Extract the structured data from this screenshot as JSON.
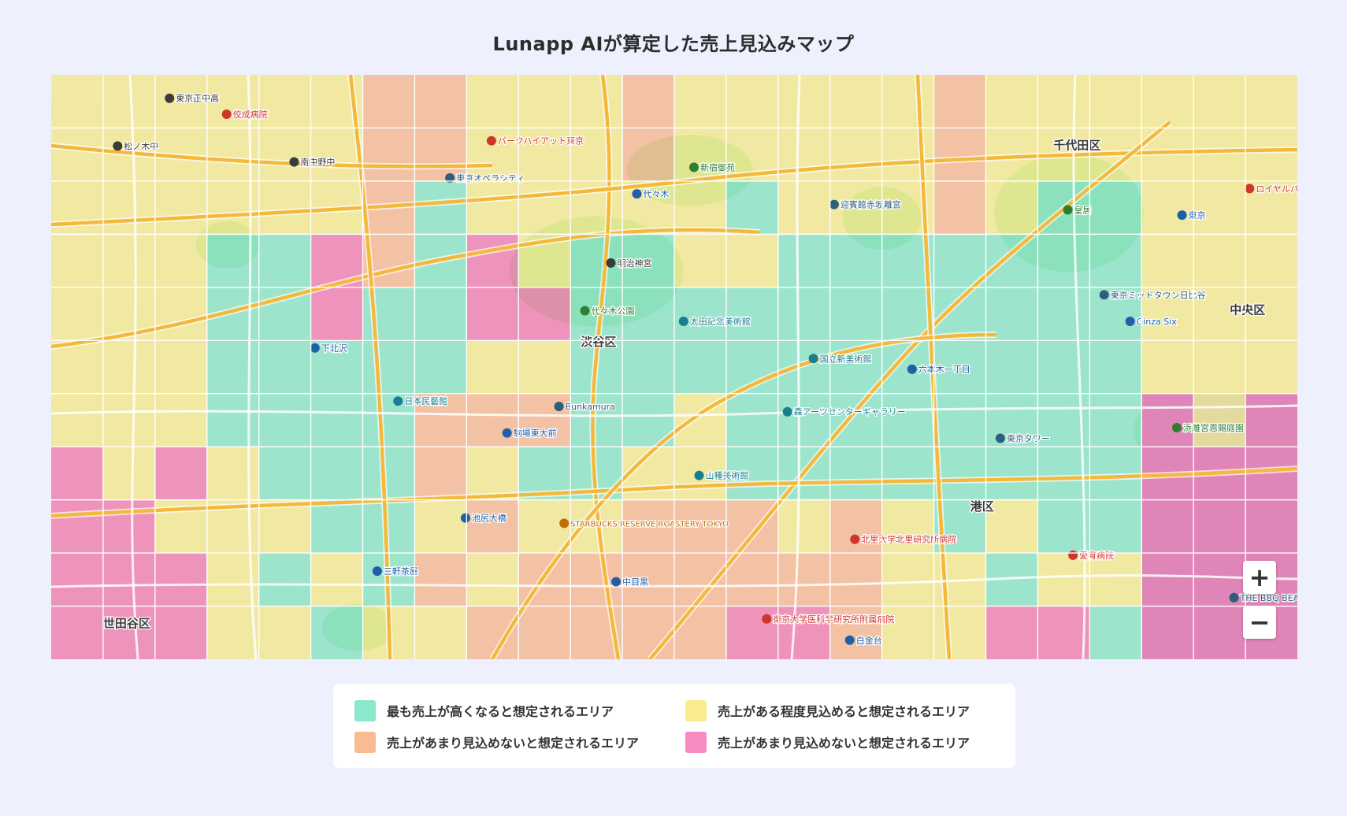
{
  "title": "Lunapp AIが算定した売上見込みマップ",
  "zoom": {
    "in_label": "+",
    "out_label": "−"
  },
  "colors": {
    "high": "#6be0c0",
    "medium": "#f3e87a",
    "low": "#f7a87c",
    "lowest": "#ee5ea3",
    "grid": "#ffffff",
    "road_major": "#f4b93c",
    "road_minor": "#ffffff",
    "park": "#bfe3b5"
  },
  "legend": [
    {
      "label": "最も売上が高くなると想定されるエリア",
      "color": "#8ae8cd"
    },
    {
      "label": "売上がある程度見込めると想定されるエリア",
      "color": "#fbeb8f"
    },
    {
      "label": "売上があまり見込めないと想定されるエリア",
      "color": "#fbbb92"
    },
    {
      "label": "売上があまり見込めないと想定されるエリア",
      "color": "#f68bbf"
    }
  ],
  "heat_grid": {
    "cols": 24,
    "rows": 11,
    "legend": "Y=ある程度見込める, G=最も高い, O=あまり見込めない, P=あまり見込めない",
    "cells": [
      "YYYYYYOOYYYOYYYYYOYYYYYY",
      "YYYYYYOOYYYOYYYYYOYYYYYY",
      "YYYYYYOGYYYYYGYYYOYGGYYY",
      "YYYGGPOGPYGGYYGGGGGGGYYY",
      "YYYGGPGGPPGGGGGGGGGGGYYY",
      "YYYGGGGGYYGGGGGGGGGGGYYY",
      "YYYGGGGOOOGGYGGGGGGGGPYP",
      "PYPYGGGOYGGYYGGGGGGGGPPP",
      "PPYYYGGYOYYOOOYOYGYGGPPP",
      "PPPYGYGOYOOOOOOOYYGYYPPP",
      "PPPYYGYYOOOOOPPOYYPPGPPP"
    ]
  },
  "map_labels": [
    {
      "text": "東京正中高",
      "col": 2.4,
      "row": 0.5,
      "kind": "school"
    },
    {
      "text": "佼成病院",
      "col": 3.5,
      "row": 0.8,
      "kind": "hospital"
    },
    {
      "text": "松ノ木中",
      "col": 1.4,
      "row": 1.4,
      "kind": "school"
    },
    {
      "text": "南中野中",
      "col": 4.8,
      "row": 1.7,
      "kind": "school"
    },
    {
      "text": "東京オペラシティ",
      "col": 7.8,
      "row": 2.0,
      "kind": "poi"
    },
    {
      "text": "パークハイアット東京",
      "col": 8.6,
      "row": 1.3,
      "kind": "hotel"
    },
    {
      "text": "新宿御苑",
      "col": 12.5,
      "row": 1.8,
      "kind": "park"
    },
    {
      "text": "千代田区",
      "col": 19.3,
      "row": 1.4,
      "kind": "ward"
    },
    {
      "text": "代々木",
      "col": 11.4,
      "row": 2.3,
      "kind": "station"
    },
    {
      "text": "明治神宮",
      "col": 10.9,
      "row": 3.6,
      "kind": "shrine"
    },
    {
      "text": "代々木公園",
      "col": 10.4,
      "row": 4.5,
      "kind": "park"
    },
    {
      "text": "渋谷区",
      "col": 10.2,
      "row": 5.1,
      "kind": "ward"
    },
    {
      "text": "中央区",
      "col": 22.7,
      "row": 4.5,
      "kind": "ward"
    },
    {
      "text": "東京",
      "col": 21.9,
      "row": 2.7,
      "kind": "station"
    },
    {
      "text": "港区",
      "col": 17.7,
      "row": 8.2,
      "kind": "ward"
    },
    {
      "text": "世田谷区",
      "col": 1.0,
      "row": 10.4,
      "kind": "ward"
    },
    {
      "text": "Bunkamura",
      "col": 9.9,
      "row": 6.3,
      "kind": "poi"
    },
    {
      "text": "東京タワー",
      "col": 18.4,
      "row": 6.9,
      "kind": "poi"
    },
    {
      "text": "STARBUCKS RESERVE ROASTERY TOKYO",
      "col": 10.0,
      "row": 8.5,
      "kind": "cafe"
    },
    {
      "text": "東京大学医科学研究所附属病院",
      "col": 13.9,
      "row": 10.3,
      "kind": "hospital"
    },
    {
      "text": "北里大学北里研究所病院",
      "col": 15.6,
      "row": 8.8,
      "kind": "hospital"
    },
    {
      "text": "愛育病院",
      "col": 19.8,
      "row": 9.1,
      "kind": "hospital"
    },
    {
      "text": "山種美術館",
      "col": 12.6,
      "row": 7.6,
      "kind": "museum"
    },
    {
      "text": "森アーツセンターギャラリー",
      "col": 14.3,
      "row": 6.4,
      "kind": "museum"
    },
    {
      "text": "太田記念美術館",
      "col": 12.3,
      "row": 4.7,
      "kind": "museum"
    },
    {
      "text": "国立新美術館",
      "col": 14.8,
      "row": 5.4,
      "kind": "museum"
    },
    {
      "text": "日本民藝館",
      "col": 6.8,
      "row": 6.2,
      "kind": "museum"
    },
    {
      "text": "六本木一丁目",
      "col": 16.7,
      "row": 5.6,
      "kind": "station"
    },
    {
      "text": "Ginza Six",
      "col": 20.9,
      "row": 4.7,
      "kind": "shopping"
    },
    {
      "text": "浜離宮恩賜庭園",
      "col": 21.8,
      "row": 6.7,
      "kind": "park"
    },
    {
      "text": "東京ミッドタウン日比谷",
      "col": 20.4,
      "row": 4.2,
      "kind": "poi"
    },
    {
      "text": "迎賓館赤坂離宮",
      "col": 15.2,
      "row": 2.5,
      "kind": "poi"
    },
    {
      "text": "皇居",
      "col": 19.7,
      "row": 2.6,
      "kind": "park"
    },
    {
      "text": "下北沢",
      "col": 5.2,
      "row": 5.2,
      "kind": "station"
    },
    {
      "text": "駒場東大前",
      "col": 8.9,
      "row": 6.8,
      "kind": "station"
    },
    {
      "text": "三軒茶屋",
      "col": 6.4,
      "row": 9.4,
      "kind": "station"
    },
    {
      "text": "池尻大橋",
      "col": 8.1,
      "row": 8.4,
      "kind": "station"
    },
    {
      "text": "中目黒",
      "col": 11.0,
      "row": 9.6,
      "kind": "station"
    },
    {
      "text": "白金台",
      "col": 15.5,
      "row": 10.7,
      "kind": "station"
    },
    {
      "text": "THE BBQ BEACH in TOYOSU",
      "col": 22.9,
      "row": 9.9,
      "kind": "poi"
    },
    {
      "text": "ロイヤルパーク",
      "col": 23.2,
      "row": 2.2,
      "kind": "hotel"
    }
  ]
}
